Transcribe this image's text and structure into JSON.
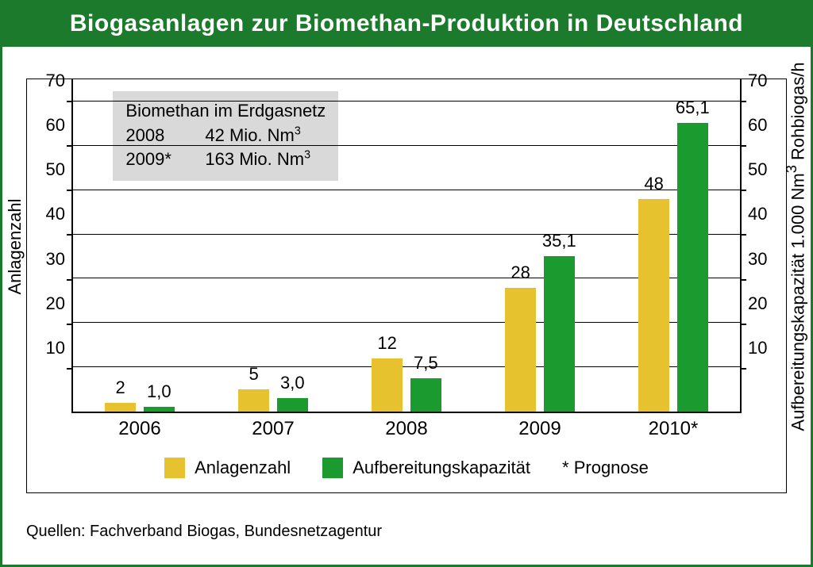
{
  "title": "Biogasanlagen zur Biomethan-Produktion in Deutschland",
  "chart": {
    "type": "bar",
    "categories": [
      "2006",
      "2007",
      "2008",
      "2009",
      "2010*"
    ],
    "series": [
      {
        "name": "Anlagenzahl",
        "color": "#e6c22e",
        "values": [
          2,
          5,
          12,
          28,
          48
        ],
        "value_labels": [
          "2",
          "5",
          "12",
          "28",
          "48"
        ]
      },
      {
        "name": "Aufbereitungskapazität",
        "color": "#1b9b2f",
        "values": [
          1.0,
          3.0,
          7.5,
          35.1,
          65.1
        ],
        "value_labels": [
          "1,0",
          "3,0",
          "7,5",
          "35,1",
          "65,1"
        ]
      }
    ],
    "y_left": {
      "label": "Anlagenzahl",
      "min": 0,
      "max": 75,
      "ticks": [
        10,
        20,
        30,
        40,
        50,
        60,
        70
      ]
    },
    "y_right": {
      "label": "Aufbereitungskapazität 1.000 Nm³ Rohbiogas/h",
      "min": 0,
      "max": 75,
      "ticks": [
        10,
        20,
        30,
        40,
        50,
        60,
        70
      ]
    },
    "gridlines_at": [
      10,
      20,
      30,
      40,
      50,
      60,
      70
    ],
    "bar_width_pct": 4.6,
    "bar_gap_pct": 1.2,
    "group_positions_pct": [
      10,
      30,
      50,
      70,
      90
    ],
    "background_color": "#ffffff",
    "border_color": "#000000",
    "label_fontsize": 22,
    "axis_fontsize": 22
  },
  "info_box": {
    "title": "Biomethan im Erdgasnetz",
    "rows": [
      {
        "year": "2008",
        "value": "42 Mio. Nm³"
      },
      {
        "year": "2009*",
        "value": "163 Mio. Nm³"
      }
    ],
    "background": "#d9d9d9",
    "left_pct": 6,
    "top_pct": 3.5
  },
  "legend": {
    "items": [
      {
        "swatch": "#e6c22e",
        "label": "Anlagenzahl"
      },
      {
        "swatch": "#1b9b2f",
        "label": "Aufbereitungskapazität"
      }
    ],
    "note": "* Prognose"
  },
  "sources": "Quellen: Fachverband Biogas, Bundesnetzagentur",
  "colors": {
    "title_bar_bg": "#1b7a2b",
    "title_text": "#ffffff",
    "outer_border": "#1b7a2b"
  }
}
